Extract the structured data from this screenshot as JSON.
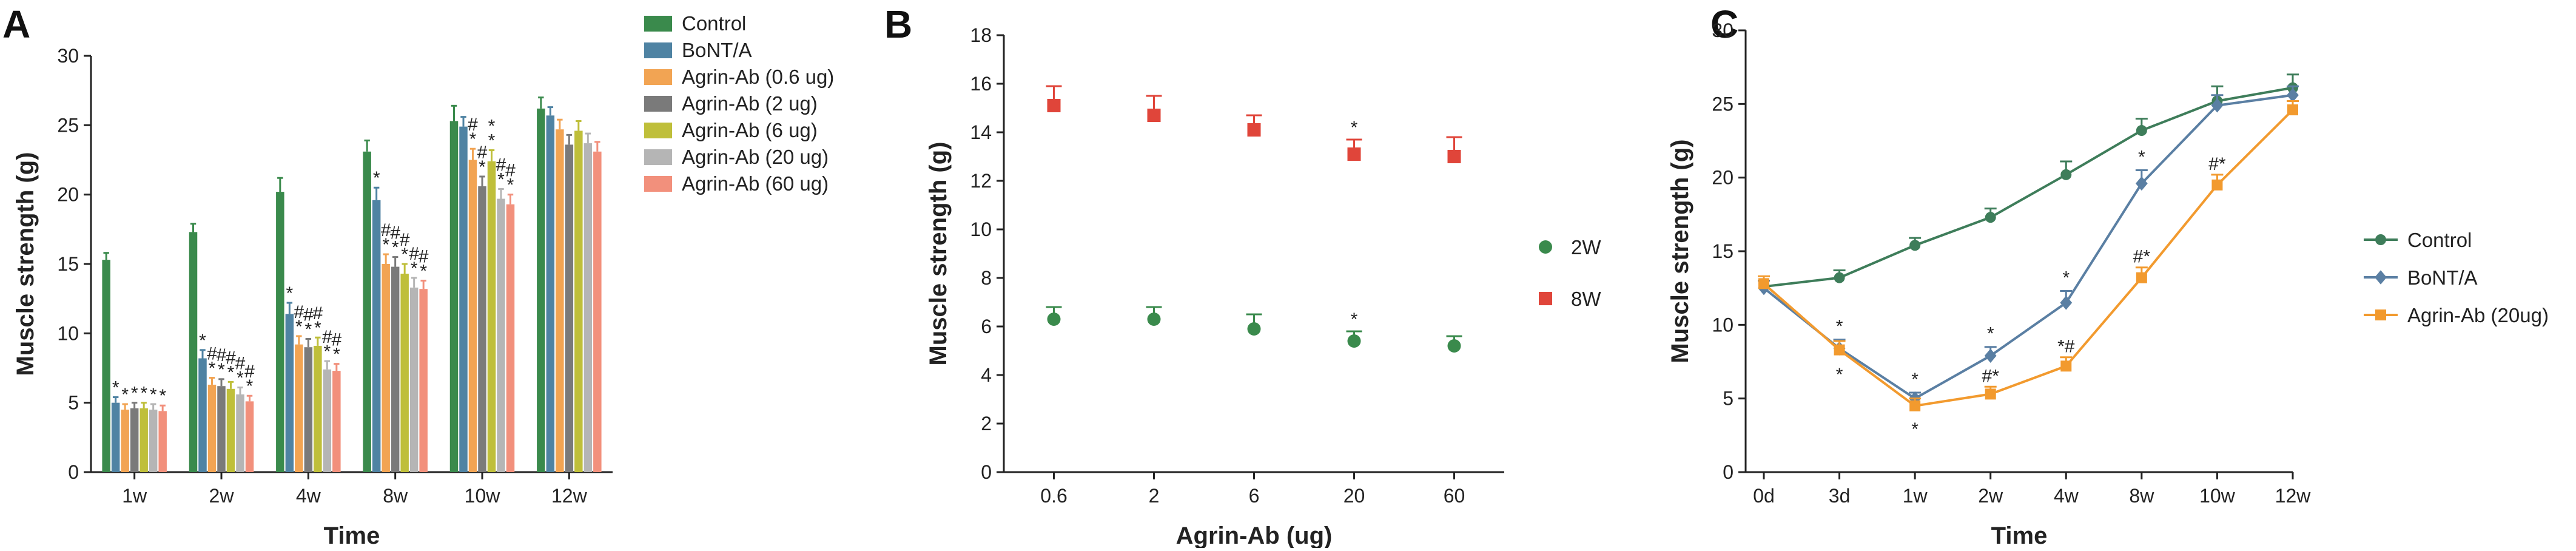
{
  "panels": [
    {
      "letter": "A"
    },
    {
      "letter": "B"
    },
    {
      "letter": "C"
    }
  ],
  "chart_data": [
    {
      "type": "bar",
      "panel": "A",
      "xlabel": "Time",
      "ylabel": "Muscle strength (g)",
      "ylim": [
        0,
        30
      ],
      "yticks": [
        0,
        5,
        10,
        15,
        20,
        25,
        30
      ],
      "categories": [
        "1w",
        "2w",
        "4w",
        "8w",
        "10w",
        "12w"
      ],
      "legend_position": "right",
      "series": [
        {
          "name": "Control",
          "color": "#3a8a4c",
          "values": [
            15.3,
            17.3,
            20.2,
            23.1,
            25.3,
            26.2
          ],
          "errors": [
            0.5,
            0.6,
            1.0,
            0.8,
            1.1,
            0.8
          ]
        },
        {
          "name": "BoNT/A",
          "color": "#4f83a3",
          "values": [
            5.0,
            8.2,
            11.4,
            19.6,
            24.9,
            25.7
          ],
          "errors": [
            0.4,
            0.6,
            0.8,
            0.9,
            0.7,
            0.6
          ]
        },
        {
          "name": "Agrin-Ab (0.6 ug)",
          "color": "#f2a453",
          "values": [
            4.5,
            6.3,
            9.2,
            15.0,
            22.5,
            24.7
          ],
          "errors": [
            0.4,
            0.5,
            0.6,
            0.7,
            0.8,
            0.7
          ]
        },
        {
          "name": "Agrin-Ab (2 ug)",
          "color": "#7a7a7a",
          "values": [
            4.6,
            6.2,
            9.0,
            14.8,
            20.6,
            23.6
          ],
          "errors": [
            0.4,
            0.5,
            0.6,
            0.7,
            0.7,
            0.7
          ]
        },
        {
          "name": "Agrin-Ab (6 ug)",
          "color": "#bfbf3a",
          "values": [
            4.6,
            6.0,
            9.1,
            14.3,
            22.4,
            24.6
          ],
          "errors": [
            0.4,
            0.5,
            0.6,
            0.7,
            0.8,
            0.7
          ]
        },
        {
          "name": "Agrin-Ab (20 ug)",
          "color": "#b5b5b5",
          "values": [
            4.5,
            5.6,
            7.4,
            13.3,
            19.7,
            23.7
          ],
          "errors": [
            0.4,
            0.5,
            0.6,
            0.7,
            0.7,
            0.7
          ]
        },
        {
          "name": "Agrin-Ab (60 ug)",
          "color": "#f2907c",
          "values": [
            4.4,
            5.1,
            7.3,
            13.2,
            19.3,
            23.1
          ],
          "errors": [
            0.4,
            0.4,
            0.5,
            0.6,
            0.7,
            0.7
          ]
        }
      ],
      "annotations": [
        [
          "",
          "*",
          "*",
          "*",
          "*",
          "*",
          "*"
        ],
        [
          "",
          "*",
          "#\n*",
          "#\n*",
          "#\n*",
          "#\n*",
          "#\n*"
        ],
        [
          "",
          "*",
          "#\n*",
          "#\n*",
          "#\n*",
          "#\n*",
          "#\n*"
        ],
        [
          "",
          "*",
          "#\n*",
          "#\n*",
          "#\n*",
          "#\n*",
          "#\n*"
        ],
        [
          "",
          "",
          "#\n*",
          "#\n*",
          "*\n*",
          "#\n*",
          "#\n*"
        ],
        [
          "",
          "",
          "",
          "",
          "",
          "",
          ""
        ]
      ]
    },
    {
      "type": "scatter",
      "panel": "B",
      "xlabel": "Agrin-Ab (ug)",
      "ylabel": "Muscle strength (g)",
      "ylim": [
        0,
        18
      ],
      "yticks": [
        0,
        2,
        4,
        6,
        8,
        10,
        12,
        14,
        16,
        18
      ],
      "categories": [
        "0.6",
        "2",
        "6",
        "20",
        "60"
      ],
      "legend_position": "right",
      "series": [
        {
          "name": "2W",
          "color": "#3a8a4c",
          "marker": "circle",
          "values": [
            6.3,
            6.3,
            5.9,
            5.4,
            5.2
          ],
          "errors": [
            0.5,
            0.5,
            0.6,
            0.4,
            0.4
          ]
        },
        {
          "name": "8W",
          "color": "#e0453a",
          "marker": "square",
          "values": [
            15.1,
            14.7,
            14.1,
            13.1,
            13.0
          ],
          "errors": [
            0.8,
            0.8,
            0.6,
            0.6,
            0.8
          ]
        }
      ],
      "annotations": [
        {
          "series": "8W",
          "index": 3,
          "text": "*"
        },
        {
          "series": "2W",
          "index": 3,
          "text": "*"
        }
      ]
    },
    {
      "type": "line",
      "panel": "C",
      "xlabel": "Time",
      "ylabel": "Muscle strength (g)",
      "ylim": [
        0,
        30
      ],
      "yticks": [
        0,
        5,
        10,
        15,
        20,
        25,
        30
      ],
      "categories": [
        "0d",
        "3d",
        "1w",
        "2w",
        "4w",
        "8w",
        "10w",
        "12w"
      ],
      "legend_position": "right",
      "series": [
        {
          "name": "Control",
          "color": "#3e7d5a",
          "marker": "circle",
          "values": [
            12.6,
            13.2,
            15.4,
            17.3,
            20.2,
            23.2,
            25.2,
            26.1
          ],
          "errors": [
            0.4,
            0.5,
            0.5,
            0.6,
            0.9,
            0.8,
            1.0,
            0.9
          ]
        },
        {
          "name": "BoNT/A",
          "color": "#5a7fa3",
          "marker": "diamond",
          "values": [
            12.5,
            8.4,
            5.0,
            7.9,
            11.5,
            19.6,
            24.9,
            25.6
          ],
          "errors": [
            0.5,
            0.6,
            0.4,
            0.6,
            0.8,
            0.9,
            0.7,
            0.6
          ]
        },
        {
          "name": "Agrin-Ab (20ug)",
          "color": "#f29a2e",
          "marker": "square",
          "values": [
            12.8,
            8.3,
            4.5,
            5.3,
            7.2,
            13.2,
            19.5,
            24.6
          ],
          "errors": [
            0.5,
            0.6,
            0.5,
            0.5,
            0.6,
            0.7,
            0.7,
            0.6
          ]
        }
      ],
      "annotations": [
        {
          "index": 1,
          "text": "*",
          "pos": "above"
        },
        {
          "index": 1,
          "text": "*",
          "pos": "below"
        },
        {
          "index": 2,
          "text": "*",
          "pos": "above"
        },
        {
          "index": 2,
          "text": "*",
          "pos": "below"
        },
        {
          "index": 3,
          "text": "*",
          "pos": "above"
        },
        {
          "index": 3,
          "text": "#*",
          "pos": "mid"
        },
        {
          "index": 4,
          "text": "*",
          "pos": "above"
        },
        {
          "index": 4,
          "text": "*#",
          "pos": "mid"
        },
        {
          "index": 5,
          "text": "*",
          "pos": "above"
        },
        {
          "index": 5,
          "text": "#*",
          "pos": "mid"
        },
        {
          "index": 6,
          "text": "#*",
          "pos": "mid"
        }
      ]
    }
  ]
}
